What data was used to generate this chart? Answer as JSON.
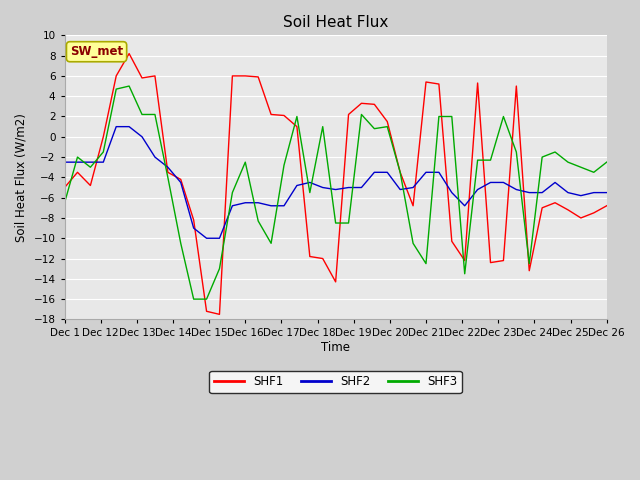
{
  "title": "Soil Heat Flux",
  "ylabel": "Soil Heat Flux (W/m2)",
  "xlabel": "Time",
  "ylim": [
    -18,
    10
  ],
  "fig_bg_color": "#d0d0d0",
  "plot_bg_color": "#e8e8e8",
  "annotation_text": "SW_met",
  "x_tick_labels": [
    "Dec 1",
    "Dec 12",
    "Dec 13",
    "Dec 14",
    "Dec 15",
    "Dec 16",
    "Dec 17",
    "Dec 18",
    "Dec 19",
    "Dec 20",
    "Dec 21",
    "Dec 22",
    "Dec 23",
    "Dec 24",
    "Dec 25",
    "Dec 26"
  ],
  "shf1": [
    -5.0,
    -3.5,
    -4.8,
    0.0,
    6.0,
    8.2,
    5.8,
    6.0,
    -3.5,
    -4.2,
    -8.2,
    -17.2,
    -17.5,
    6.0,
    6.0,
    5.9,
    2.2,
    2.1,
    1.0,
    -11.8,
    -12.0,
    -14.3,
    2.2,
    3.3,
    3.2,
    1.5,
    -3.5,
    -6.8,
    5.4,
    5.2,
    -10.3,
    -12.2,
    5.3,
    -12.4,
    -12.2,
    5.0,
    -13.2,
    -7.0,
    -6.5,
    -7.2,
    -8.0,
    -7.5,
    -6.8
  ],
  "shf2": [
    -2.5,
    -2.5,
    -2.5,
    -2.5,
    1.0,
    1.0,
    0.0,
    -2.0,
    -3.0,
    -4.5,
    -9.0,
    -10.0,
    -10.0,
    -6.8,
    -6.5,
    -6.5,
    -6.8,
    -6.8,
    -4.8,
    -4.5,
    -5.0,
    -5.2,
    -5.0,
    -5.0,
    -3.5,
    -3.5,
    -5.2,
    -5.0,
    -3.5,
    -3.5,
    -5.5,
    -6.8,
    -5.2,
    -4.5,
    -4.5,
    -5.2,
    -5.5,
    -5.5,
    -4.5,
    -5.5,
    -5.8,
    -5.5,
    -5.5
  ],
  "shf3": [
    -6.5,
    -2.0,
    -3.0,
    -1.5,
    4.7,
    5.0,
    2.2,
    2.2,
    -4.0,
    -10.5,
    -16.0,
    -16.0,
    -13.0,
    -5.5,
    -2.5,
    -8.3,
    -10.5,
    -2.8,
    2.0,
    -5.5,
    1.0,
    -8.5,
    -8.5,
    2.2,
    0.8,
    1.0,
    -3.5,
    -10.5,
    -12.5,
    2.0,
    2.0,
    -13.5,
    -2.3,
    -2.3,
    2.0,
    -1.5,
    -12.5,
    -2.0,
    -1.5,
    -2.5,
    -3.0,
    -3.5,
    -2.5
  ],
  "shf1_color": "#ff0000",
  "shf2_color": "#0000cc",
  "shf3_color": "#00aa00",
  "annotation_box_color": "#ffff99",
  "annotation_text_color": "#8b0000",
  "grid_color": "#ffffff",
  "yticks": [
    -18,
    -16,
    -14,
    -12,
    -10,
    -8,
    -6,
    -4,
    -2,
    0,
    2,
    4,
    6,
    8,
    10
  ]
}
